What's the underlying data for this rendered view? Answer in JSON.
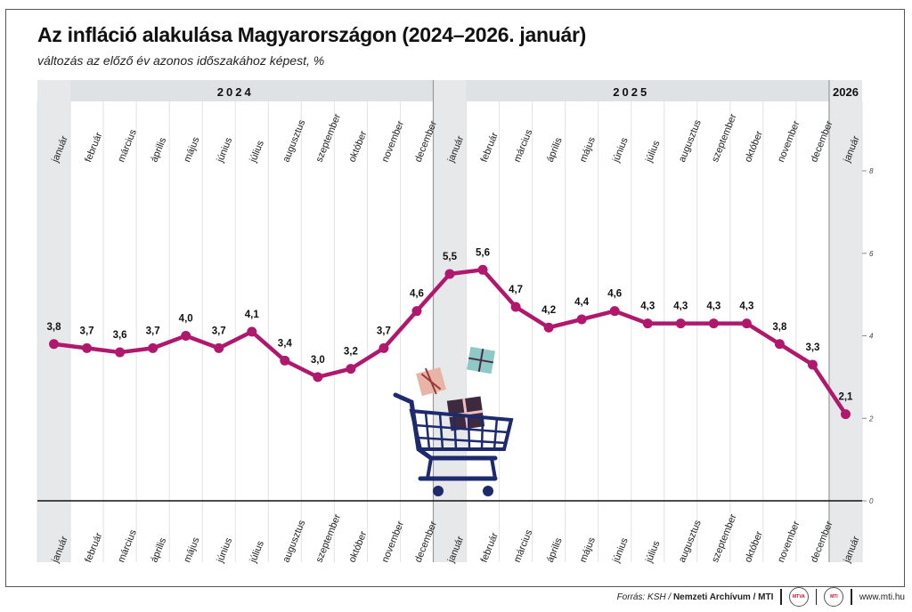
{
  "header": {
    "title": "Az infláció alakulása Magyarországon (2024–2026. január)",
    "subtitle": "változás az előző év azonos időszakához képest, %"
  },
  "chart_data": {
    "type": "line",
    "title": "Az infláció alakulása Magyarországon (2024–2026. január)",
    "subtitle": "változás az előző év azonos időszakához képest, %",
    "years": [
      {
        "label": "2024",
        "months": 12
      },
      {
        "label": "2025",
        "months": 12
      },
      {
        "label": "2026",
        "months": 1
      }
    ],
    "x": [
      "január",
      "február",
      "március",
      "április",
      "május",
      "június",
      "július",
      "augusztus",
      "szeptember",
      "október",
      "november",
      "december",
      "január",
      "február",
      "március",
      "április",
      "május",
      "június",
      "július",
      "augusztus",
      "szeptember",
      "október",
      "november",
      "december",
      "január"
    ],
    "series": [
      {
        "values": [
          3.8,
          3.7,
          3.6,
          3.7,
          4.0,
          3.7,
          4.1,
          3.4,
          3.0,
          3.2,
          3.7,
          4.6,
          5.5,
          5.6,
          4.7,
          4.2,
          4.4,
          4.6,
          4.3,
          4.3,
          4.3,
          4.3,
          3.8,
          3.3,
          2.1
        ],
        "labels": [
          "3,8",
          "3,7",
          "3,6",
          "3,7",
          "4,0",
          "3,7",
          "4,1",
          "3,4",
          "3,0",
          "3,2",
          "3,7",
          "4,6",
          "5,5",
          "5,6",
          "4,7",
          "4,2",
          "4,4",
          "4,6",
          "4,3",
          "4,3",
          "4,3",
          "4,3",
          "3,8",
          "3,3",
          "2,1"
        ]
      }
    ],
    "ylim": [
      0,
      8
    ],
    "yticks": [
      "0",
      "2",
      "4",
      "6",
      "8"
    ],
    "shaded_months": [
      0,
      12,
      24
    ],
    "line_color": "#b0186d",
    "grid": true,
    "decoration": "shopping-cart-with-gifts"
  },
  "footer": {
    "source_prefix": "Forrás: KSH / ",
    "source_archive": "Nemzeti Archívum / MTI",
    "logo1": "MTVA",
    "logo2": "MTI",
    "website": "www.mti.hu"
  }
}
